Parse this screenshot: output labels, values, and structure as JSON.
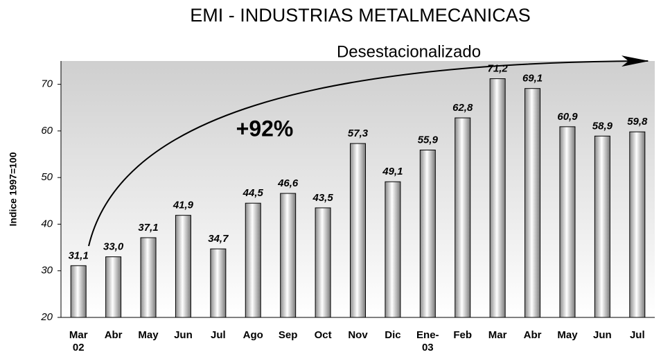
{
  "chart_data": {
    "type": "bar",
    "title": "EMI - INDUSTRIAS METALMECANICAS",
    "y_label": "Indice 1997=100",
    "annotations": [
      "Desestacionalizado",
      "+92%"
    ],
    "categories": [
      "Mar 02",
      "Abr",
      "May",
      "Jun",
      "Jul",
      "Ago",
      "Sep",
      "Oct",
      "Nov",
      "Dic",
      "Ene-03",
      "Feb",
      "Mar",
      "Abr",
      "May",
      "Jun",
      "Jul"
    ],
    "values": [
      31.1,
      33.0,
      37.1,
      41.9,
      34.7,
      44.5,
      46.6,
      43.5,
      57.3,
      49.1,
      55.9,
      62.8,
      71.2,
      69.1,
      60.9,
      58.9,
      59.8
    ],
    "value_labels": [
      "31,1",
      "33,0",
      "37,1",
      "41,9",
      "34,7",
      "44,5",
      "46,6",
      "43,5",
      "57,3",
      "49,1",
      "55,9",
      "62,8",
      "71,2",
      "69,1",
      "60,9",
      "58,9",
      "59,8"
    ],
    "color": "#c8c8c8",
    "ylim": [
      20,
      75
    ],
    "yticks": [
      20,
      30,
      40,
      50,
      60,
      70
    ],
    "grid": false
  }
}
